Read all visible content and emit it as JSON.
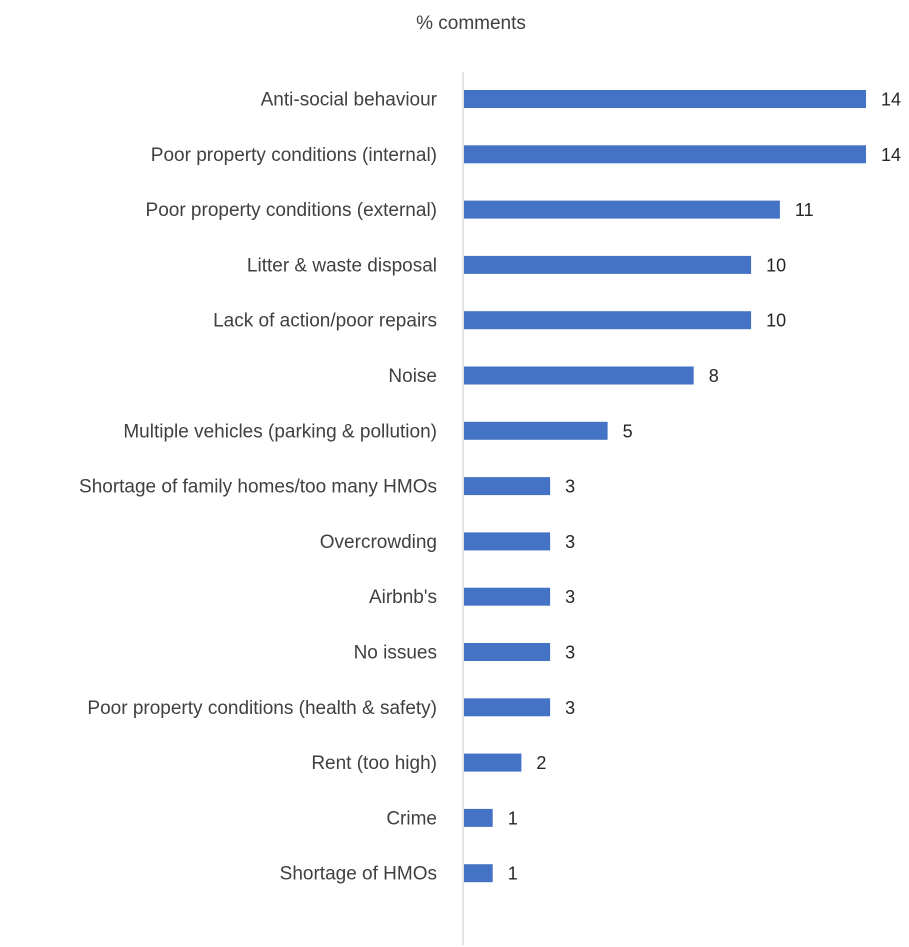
{
  "chart_data": {
    "type": "bar",
    "orientation": "horizontal",
    "title": "% comments",
    "xlabel": "",
    "ylabel": "",
    "categories": [
      "Anti-social behaviour",
      "Poor property conditions (internal)",
      "Poor property conditions (external)",
      "Litter & waste disposal",
      "Lack of action/poor repairs",
      "Noise",
      "Multiple vehicles (parking & pollution)",
      "Shortage of family homes/too many HMOs",
      "Overcrowding",
      "Airbnb's",
      "No issues",
      "Poor property conditions (health & safety)",
      "Rent (too high)",
      "Crime",
      "Shortage of HMOs"
    ],
    "values": [
      14,
      14,
      11,
      10,
      10,
      8,
      5,
      3,
      3,
      3,
      3,
      3,
      2,
      1,
      1
    ],
    "data_labels": true,
    "xlim": [
      0,
      14
    ],
    "grid": false,
    "legend": "none",
    "bar_color": "#4472C4",
    "axis_color": "#D9D9D9"
  }
}
